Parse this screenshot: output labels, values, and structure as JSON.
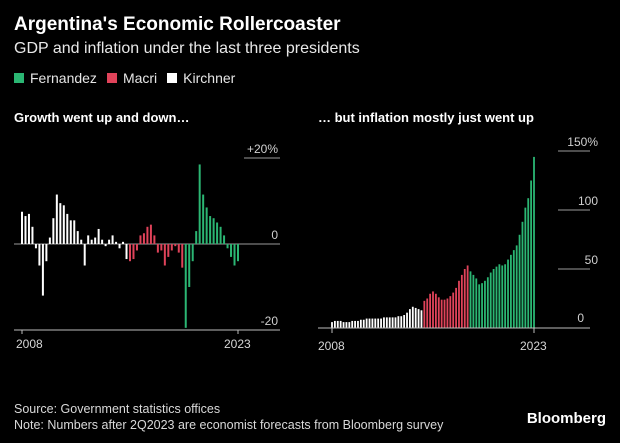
{
  "title": "Argentina's Economic Rollercoaster",
  "subtitle": "GDP and inflation under the last three presidents",
  "legend": [
    {
      "label": "Fernandez",
      "color": "#2bb673"
    },
    {
      "label": "Macri",
      "color": "#e0435a"
    },
    {
      "label": "Kirchner",
      "color": "#ffffff"
    }
  ],
  "colors": {
    "Kirchner": "#ffffff",
    "Macri": "#e0435a",
    "Fernandez": "#2bb673"
  },
  "source": "Source: Government statistics offices",
  "note": "Note: Numbers after 2Q2023 are economist forecasts from Bloomberg survey",
  "brand": "Bloomberg",
  "chart_data": [
    {
      "type": "bar",
      "title": "Growth went up and down…",
      "ylim": [
        -20,
        20
      ],
      "yticks": [
        "+20%",
        "0",
        "-20"
      ],
      "xticks": [
        "2008",
        "2023"
      ],
      "series": [
        {
          "name": "Kirchner",
          "values": [
            7.5,
            6.5,
            7.0,
            4.0,
            -1.0,
            -5.0,
            -12.0,
            -4.0,
            1.5,
            6.0,
            11.5,
            9.5,
            9.0,
            7.0,
            5.5,
            5.5,
            3.0,
            1.0,
            -5.0,
            2.0,
            1.0,
            1.5,
            3.5,
            1.0,
            -0.5,
            1.0,
            2.0,
            0.5,
            -1.0,
            0.5,
            -3.5
          ]
        },
        {
          "name": "Macri",
          "values": [
            -4.0,
            -3.5,
            -1.5,
            2.0,
            2.5,
            4.0,
            4.5,
            2.0,
            -2.0,
            -1.5,
            -5.0,
            -3.0,
            -1.5,
            -0.5,
            -2.0,
            -5.5
          ]
        },
        {
          "name": "Fernandez",
          "values": [
            -19.5,
            -10.0,
            -4.0,
            3.0,
            18.5,
            11.5,
            8.5,
            6.5,
            6.0,
            5.0,
            4.0,
            2.0,
            -1.0,
            -3.0,
            -5.0,
            -4.0
          ]
        }
      ]
    },
    {
      "type": "bar",
      "title": "… but inflation mostly just went up",
      "ylim": [
        0,
        150
      ],
      "yticks": [
        "150%",
        "100",
        "50",
        "0"
      ],
      "xticks": [
        "2008",
        "2023"
      ],
      "series": [
        {
          "name": "Kirchner",
          "values": [
            5,
            6,
            6,
            6,
            5,
            5,
            5,
            6,
            6,
            6,
            7,
            7,
            8,
            8,
            8,
            8,
            8,
            8,
            9,
            9,
            9,
            9,
            9,
            10,
            10,
            11,
            13,
            16,
            18,
            17,
            16,
            15
          ]
        },
        {
          "name": "Macri",
          "values": [
            23,
            25,
            29,
            31,
            29,
            26,
            24,
            24,
            25,
            27,
            30,
            34,
            40,
            45,
            50,
            53
          ]
        },
        {
          "name": "Fernandez",
          "values": [
            48,
            45,
            42,
            37,
            38,
            40,
            43,
            47,
            50,
            52,
            54,
            53,
            54,
            58,
            62,
            66,
            70,
            79,
            90,
            102,
            110,
            125,
            145
          ]
        }
      ]
    }
  ]
}
